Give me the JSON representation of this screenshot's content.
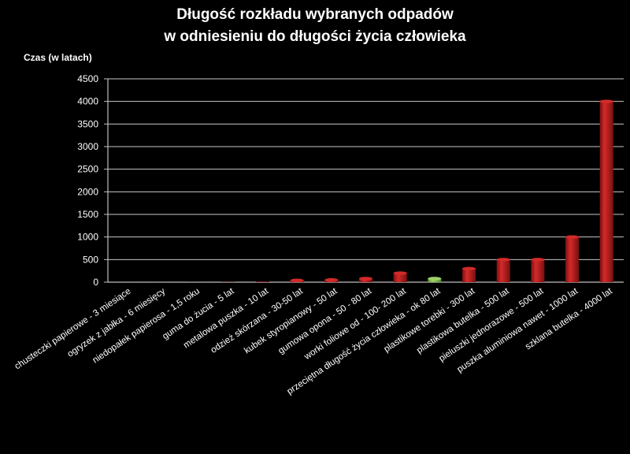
{
  "chart_data": {
    "type": "bar",
    "title_line1": "Długość rozkładu wybranych odpadów",
    "title_line2": "w odniesieniu do długości życia człowieka",
    "ylabel": "Czas (w latach)",
    "xlabel": "",
    "ylim": [
      0,
      4500
    ],
    "yticks": [
      0,
      500,
      1000,
      1500,
      2000,
      2500,
      3000,
      3500,
      4000,
      4500
    ],
    "grid": true,
    "categories": [
      "chusteczki papierowe - 3 miesiące",
      "ogryzek z jabłka - 6 miesięcy",
      "niedopałek papierosa - 1,5 roku",
      "guma do żucia - 5 lat",
      "metalowa puszka - 10 lat",
      "odzież skórzana - 30-50 lat",
      "kubek styropianowy - 50 lat",
      "gumowa opona - 50 - 80 lat",
      "worki foliowe od - 100- 200 lat",
      "przeciętna długość życia człowieka - ok 80 lat",
      "plastikowe torebki - 300 lat",
      "plastikowa butelka - 500 lat",
      "pieluszki jednorazowe - 500 lat",
      "puszka aluminiowa nawet - 1000 lat",
      "szklana butelka - 4000 lat"
    ],
    "values": [
      0.25,
      0.5,
      1.5,
      5,
      10,
      40,
      50,
      80,
      200,
      80,
      300,
      500,
      500,
      1000,
      4000
    ],
    "highlight_index": 9,
    "colors": {
      "bar": "#d42a2a",
      "bar_dark": "#7a1010",
      "highlight": "#9fd36a",
      "highlight_dark": "#5a8a30",
      "grid": "#c8c8c8",
      "axis": "#bfbfbf",
      "plot_bg": "#000000"
    }
  }
}
